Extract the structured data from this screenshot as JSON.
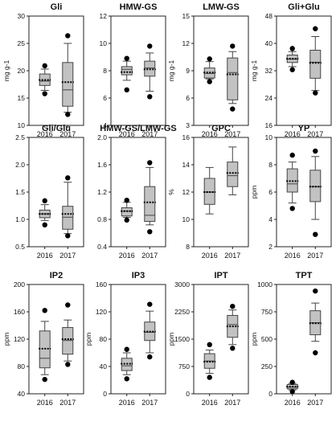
{
  "chart_data": [
    {
      "type": "box",
      "title": "Gli",
      "ylabel": "mg g-1",
      "ylim": [
        10,
        30
      ],
      "yticks": [
        10,
        15,
        20,
        25,
        30
      ],
      "categories": [
        "2016",
        "2017"
      ],
      "boxes": [
        {
          "whisker_low": 16.4,
          "q1": 17.3,
          "median": 18.1,
          "q3": 19.4,
          "whisker_high": 20.3,
          "mean": 18.3,
          "outliers": [
            15.8,
            20.9
          ]
        },
        {
          "whisker_low": 12.4,
          "q1": 13.5,
          "median": 16.5,
          "q3": 21.5,
          "whisker_high": 25.0,
          "mean": 17.9,
          "outliers": [
            12.0,
            26.4
          ]
        }
      ]
    },
    {
      "type": "box",
      "title": "HMW-GS",
      "ylabel": "",
      "ylim": [
        4,
        12
      ],
      "yticks": [
        4,
        6,
        8,
        10,
        12
      ],
      "categories": [
        "2016",
        "2017"
      ],
      "boxes": [
        {
          "whisker_low": 7.3,
          "q1": 7.7,
          "median": 8.1,
          "q3": 8.3,
          "whisker_high": 8.7,
          "mean": 7.9,
          "outliers": [
            6.6,
            8.9
          ]
        },
        {
          "whisker_low": 6.5,
          "q1": 7.6,
          "median": 8.2,
          "q3": 8.7,
          "whisker_high": 9.3,
          "mean": 8.1,
          "outliers": [
            6.1,
            9.8
          ]
        }
      ]
    },
    {
      "type": "box",
      "title": "LMW-GS",
      "ylabel": "mg g-1",
      "ylim": [
        3,
        15
      ],
      "yticks": [
        3,
        6,
        9,
        12,
        15
      ],
      "categories": [
        "2016",
        "2017"
      ],
      "boxes": [
        {
          "whisker_low": 8.1,
          "q1": 8.2,
          "median": 8.7,
          "q3": 9.3,
          "whisker_high": 10.0,
          "mean": 8.8,
          "outliers": [
            7.8,
            10.3
          ]
        },
        {
          "whisker_low": 5.4,
          "q1": 5.8,
          "median": 8.8,
          "q3": 10.4,
          "whisker_high": 11.1,
          "mean": 8.6,
          "outliers": [
            4.8,
            11.7
          ]
        }
      ]
    },
    {
      "type": "box",
      "title": "Gli+Glu",
      "ylabel": "mg g-1",
      "ylim": [
        16,
        48
      ],
      "yticks": [
        16,
        24,
        32,
        40,
        48
      ],
      "categories": [
        "2016",
        "2017"
      ],
      "boxes": [
        {
          "whisker_low": 33.2,
          "q1": 34.4,
          "median": 35.4,
          "q3": 36.6,
          "whisker_high": 37.6,
          "mean": 35.5,
          "outliers": [
            32.3,
            38.5
          ]
        },
        {
          "whisker_low": 26.2,
          "q1": 29.8,
          "median": 34.5,
          "q3": 38.0,
          "whisker_high": 42.0,
          "mean": 34.3,
          "outliers": [
            25.5,
            44.3
          ]
        }
      ]
    },
    {
      "type": "box",
      "title": "Gli/Glu",
      "ylabel": "",
      "ylim": [
        0.5,
        2.5
      ],
      "yticks": [
        0.5,
        1.0,
        1.5,
        2.0,
        2.5
      ],
      "categories": [
        "2016",
        "2017"
      ],
      "boxes": [
        {
          "whisker_low": 0.98,
          "q1": 1.03,
          "median": 1.1,
          "q3": 1.17,
          "whisker_high": 1.27,
          "mean": 1.1,
          "outliers": [
            0.9,
            1.34
          ]
        },
        {
          "whisker_low": 0.74,
          "q1": 0.82,
          "median": 1.04,
          "q3": 1.24,
          "whisker_high": 1.68,
          "mean": 1.1,
          "outliers": [
            0.7,
            1.76
          ]
        }
      ]
    },
    {
      "type": "box",
      "title": "HMW-GS/LMW-GS",
      "ylabel": "",
      "ylim": [
        0.4,
        2.0
      ],
      "yticks": [
        0.4,
        0.8,
        1.2,
        1.6,
        2.0
      ],
      "categories": [
        "2016",
        "2017"
      ],
      "boxes": [
        {
          "whisker_low": 0.83,
          "q1": 0.85,
          "median": 0.92,
          "q3": 0.97,
          "whisker_high": 1.05,
          "mean": 0.92,
          "outliers": [
            0.79,
            1.08
          ]
        },
        {
          "whisker_low": 0.72,
          "q1": 0.77,
          "median": 0.86,
          "q3": 1.28,
          "whisker_high": 1.56,
          "mean": 1.05,
          "outliers": [
            0.62,
            1.63
          ]
        }
      ]
    },
    {
      "type": "box",
      "title": "GPC",
      "ylabel": "%",
      "ylim": [
        8,
        16
      ],
      "yticks": [
        8,
        10,
        12,
        14,
        16
      ],
      "categories": [
        "2016",
        "2017"
      ],
      "boxes": [
        {
          "whisker_low": 10.4,
          "q1": 11.1,
          "median": 12.0,
          "q3": 13.0,
          "whisker_high": 13.8,
          "mean": 12.0,
          "outliers": []
        },
        {
          "whisker_low": 11.8,
          "q1": 12.4,
          "median": 13.2,
          "q3": 14.2,
          "whisker_high": 15.3,
          "mean": 13.4,
          "outliers": []
        }
      ]
    },
    {
      "type": "box",
      "title": "YP",
      "ylabel": "ppm",
      "ylim": [
        2,
        10
      ],
      "yticks": [
        2,
        4,
        6,
        8,
        10
      ],
      "categories": [
        "2016",
        "2017"
      ],
      "boxes": [
        {
          "whisker_low": 5.2,
          "q1": 6.0,
          "median": 6.6,
          "q3": 7.7,
          "whisker_high": 8.2,
          "mean": 6.8,
          "outliers": [
            4.8,
            8.7
          ]
        },
        {
          "whisker_low": 4.0,
          "q1": 5.3,
          "median": 6.4,
          "q3": 7.6,
          "whisker_high": 8.6,
          "mean": 6.4,
          "outliers": [
            2.9,
            9.0
          ]
        }
      ]
    },
    {
      "type": "box",
      "title": "IP2",
      "ylabel": "ppm",
      "ylim": [
        40,
        200
      ],
      "yticks": [
        40,
        80,
        120,
        160,
        200
      ],
      "categories": [
        "2016",
        "2017"
      ],
      "boxes": [
        {
          "whisker_low": 68,
          "q1": 78,
          "median": 92,
          "q3": 132,
          "whisker_high": 146,
          "mean": 106,
          "outliers": [
            61,
            162
          ]
        },
        {
          "whisker_low": 88,
          "q1": 98,
          "median": 118,
          "q3": 137,
          "whisker_high": 148,
          "mean": 120,
          "outliers": [
            83,
            170
          ]
        }
      ]
    },
    {
      "type": "box",
      "title": "IP3",
      "ylabel": "ppm",
      "ylim": [
        0,
        160
      ],
      "yticks": [
        0,
        40,
        80,
        120,
        160
      ],
      "categories": [
        "2016",
        "2017"
      ],
      "boxes": [
        {
          "whisker_low": 28,
          "q1": 34,
          "median": 41,
          "q3": 52,
          "whisker_high": 60,
          "mean": 44,
          "outliers": [
            22,
            65
          ]
        },
        {
          "whisker_low": 60,
          "q1": 78,
          "median": 90,
          "q3": 105,
          "whisker_high": 121,
          "mean": 91,
          "outliers": [
            54,
            131
          ]
        }
      ]
    },
    {
      "type": "box",
      "title": "IPT",
      "ylabel": "ppm",
      "ylim": [
        0,
        3000
      ],
      "yticks": [
        0,
        750,
        1500,
        2250,
        3000
      ],
      "categories": [
        "2016",
        "2017"
      ],
      "boxes": [
        {
          "whisker_low": 560,
          "q1": 700,
          "median": 900,
          "q3": 1100,
          "whisker_high": 1200,
          "mean": 880,
          "outliers": [
            450,
            1350
          ]
        },
        {
          "whisker_low": 1350,
          "q1": 1550,
          "median": 1900,
          "q3": 2150,
          "whisker_high": 2300,
          "mean": 1850,
          "outliers": [
            1250,
            2400
          ]
        }
      ]
    },
    {
      "type": "box",
      "title": "TPT",
      "ylabel": "ppm",
      "ylim": [
        0,
        1000
      ],
      "yticks": [
        0,
        250,
        500,
        750,
        1000
      ],
      "categories": [
        "2016",
        "2017"
      ],
      "boxes": [
        {
          "whisker_low": 35,
          "q1": 45,
          "median": 60,
          "q3": 85,
          "whisker_high": 95,
          "mean": 65,
          "outliers": [
            20,
            105
          ]
        },
        {
          "whisker_low": 480,
          "q1": 540,
          "median": 650,
          "q3": 760,
          "whisker_high": 830,
          "mean": 645,
          "outliers": [
            375,
            940
          ]
        }
      ]
    }
  ]
}
